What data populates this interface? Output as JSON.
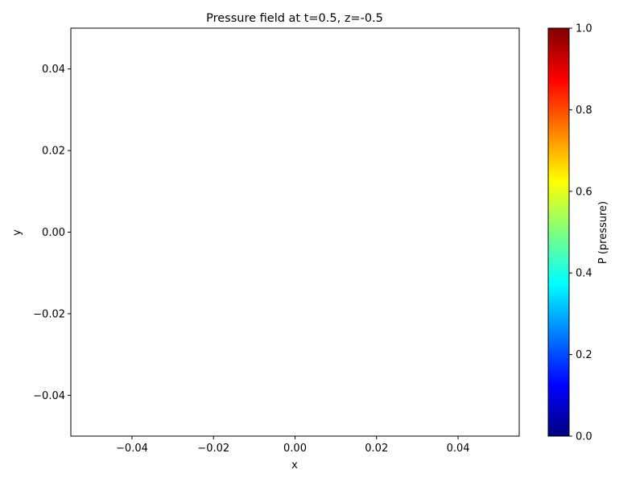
{
  "chart_data": {
    "type": "heatmap",
    "title": "Pressure field at t=0.5, z=-0.5",
    "xlabel": "x",
    "ylabel": "y",
    "xlim": [
      -0.055,
      0.055
    ],
    "ylim": [
      -0.05,
      0.05
    ],
    "x_ticks": [
      -0.04,
      -0.02,
      0.0,
      0.02,
      0.04
    ],
    "x_tick_labels": [
      "−0.04",
      "−0.02",
      "0.00",
      "0.02",
      "0.04"
    ],
    "y_ticks": [
      -0.04,
      -0.02,
      0.0,
      0.02,
      0.04
    ],
    "y_tick_labels": [
      "−0.04",
      "−0.02",
      "0.00",
      "0.02",
      "0.04"
    ],
    "grid": false,
    "data": [],
    "colorbar": {
      "label": "P (pressure)",
      "colormap": "jet",
      "range": [
        0.0,
        1.0
      ],
      "ticks": [
        0.0,
        0.2,
        0.4,
        0.6,
        0.8,
        1.0
      ],
      "tick_labels": [
        "0.0",
        "0.2",
        "0.4",
        "0.6",
        "0.8",
        "1.0"
      ],
      "stops": [
        "#00007f",
        "#0000ff",
        "#007fff",
        "#00ffff",
        "#7fff7f",
        "#ffff00",
        "#ff7f00",
        "#ff0000",
        "#7f0000"
      ]
    }
  }
}
